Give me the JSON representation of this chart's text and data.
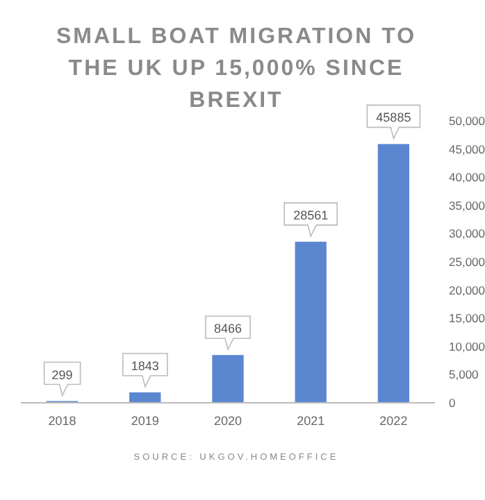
{
  "chart_data": {
    "type": "bar",
    "title": "SMALL BOAT MIGRATION TO THE UK UP 15,000% SINCE BREXIT",
    "categories": [
      "2018",
      "2019",
      "2020",
      "2021",
      "2022"
    ],
    "values": [
      299,
      1843,
      8466,
      28561,
      45885
    ],
    "color": "#5b87d0",
    "ylim": [
      0,
      50000
    ],
    "yticks": [
      {
        "value": 0,
        "label": "0"
      },
      {
        "value": 5000,
        "label": "5,000"
      },
      {
        "value": 10000,
        "label": "10,000"
      },
      {
        "value": 15000,
        "label": "15,000"
      },
      {
        "value": 20000,
        "label": "20,000"
      },
      {
        "value": 25000,
        "label": "25,000"
      },
      {
        "value": 30000,
        "label": "30,000"
      },
      {
        "value": 35000,
        "label": "35,000"
      },
      {
        "value": 40000,
        "label": "40,000"
      },
      {
        "value": 45000,
        "label": "45,000"
      },
      {
        "value": 50000,
        "label": "50,000"
      }
    ],
    "data_labels": true,
    "annotations": [
      "SOURCE: UKGOV.HOMEOFFICE"
    ]
  }
}
